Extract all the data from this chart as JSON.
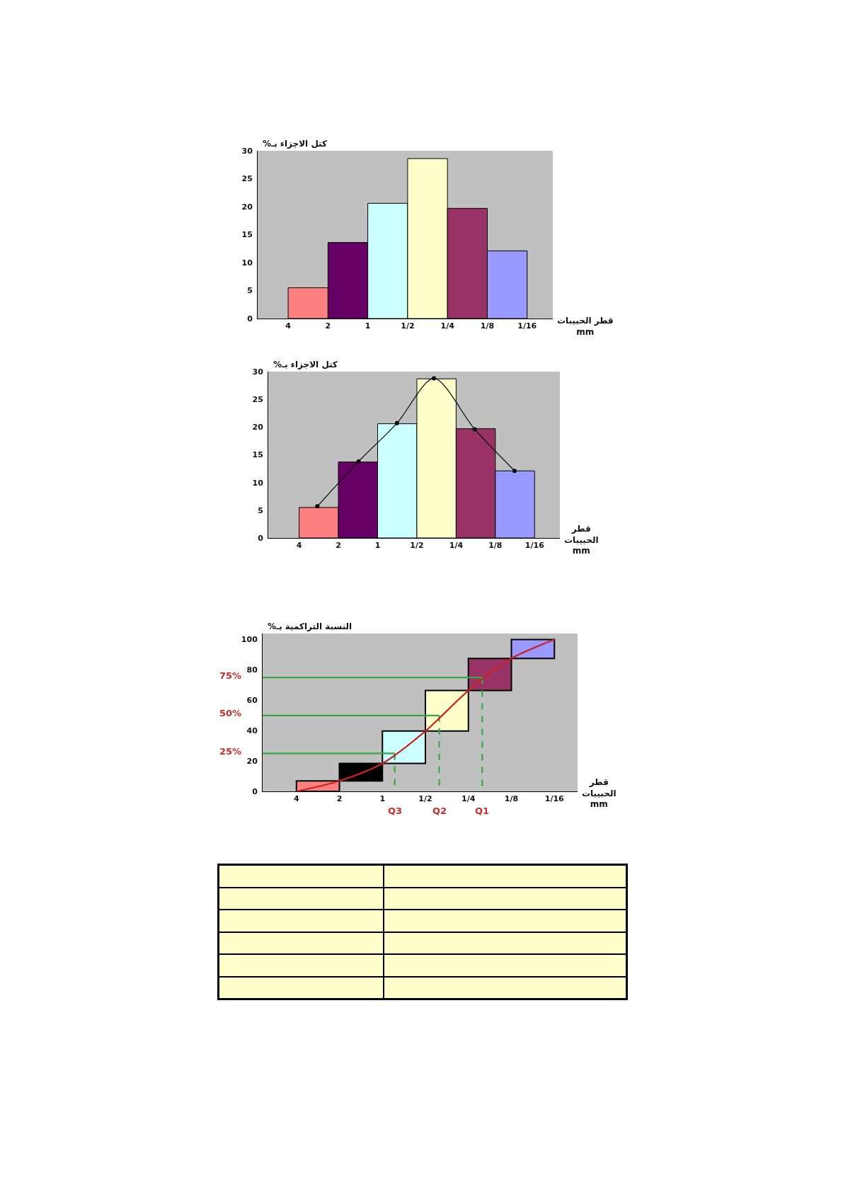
{
  "chart_data": [
    {
      "type": "histogram",
      "ylabel": "كتل الاجزاء بـ%",
      "xlabel": "قطر الحبيبات\nmm",
      "bins": [
        4,
        2,
        1,
        0.5,
        0.25,
        0.125,
        0.0625
      ],
      "values": [
        5.5,
        13.6,
        20.6,
        28.6,
        19.7,
        12.1
      ],
      "colors": [
        "#ff8080",
        "#660066",
        "#ccffff",
        "#ffffcc",
        "#993366",
        "#9999ff"
      ],
      "log": "x",
      "xlim": [
        6.8,
        0.04
      ],
      "xticks": [
        4,
        2,
        1,
        {
          "value": 0.5,
          "label": "1/2"
        },
        {
          "value": 0.25,
          "label": "1/4"
        },
        {
          "value": 0.125,
          "label": "1/8"
        },
        {
          "value": 0.0625,
          "label": "1/16"
        }
      ],
      "ylim": [
        0,
        30
      ],
      "yticks": [
        0,
        5,
        10,
        15,
        20,
        25,
        30
      ]
    },
    {
      "type": "histogram",
      "ylabel": "كتل الاجزاء بـ%",
      "xlabel": "قطر\nالحبيبات\nmm",
      "bins": [
        4,
        2,
        1,
        0.5,
        0.25,
        0.125,
        0.0625
      ],
      "values": [
        5.5,
        13.7,
        20.6,
        28.7,
        19.7,
        12.1
      ],
      "colors": [
        "#ff8080",
        "#660066",
        "#ccffff",
        "#ffffcc",
        "#993366",
        "#9999ff"
      ],
      "series": [
        {
          "type": "line",
          "color": "#000000",
          "x": [
            2.9,
            1.4,
            0.71,
            0.37,
            0.18,
            0.089
          ],
          "values": [
            5.7,
            13.8,
            20.7,
            28.8,
            19.6,
            12.1
          ],
          "marker": "circle"
        }
      ],
      "log": "x",
      "xlim": [
        6.9,
        0.04
      ],
      "xticks": [
        4,
        2,
        1,
        {
          "value": 0.5,
          "label": "1/2"
        },
        {
          "value": 0.25,
          "label": "1/4"
        },
        {
          "value": 0.125,
          "label": "1/8"
        },
        {
          "value": 0.0625,
          "label": "1/16"
        }
      ],
      "ylim": [
        0,
        30
      ],
      "yticks": [
        0,
        5,
        10,
        15,
        20,
        25,
        30
      ]
    },
    {
      "type": "histogram",
      "ylabel": "النسبة التراكمية بـ%",
      "xlabel": "قطر\nالحبيبات\nmm",
      "bins": [
        4,
        2,
        1,
        0.5,
        0.25,
        0.125,
        0.0625
      ],
      "base": [
        0,
        6.9,
        18.4,
        39.7,
        66.4,
        87.6
      ],
      "values": [
        6.9,
        11.5,
        21.3,
        26.7,
        21.2,
        12.4
      ],
      "colors": [
        "#ff8080",
        "#000000",
        "#ccffff",
        "#ffffcc",
        "#993366",
        "#9999ff"
      ],
      "series": [
        {
          "type": "line",
          "color": "#33aa44",
          "x": [
            6.9,
            0.82
          ],
          "values": [
            25,
            25
          ]
        },
        {
          "type": "line",
          "color": "#33aa44",
          "x": [
            0.82,
            0.82
          ],
          "values": [
            25,
            0
          ],
          "line_style": "dashed"
        },
        {
          "type": "line",
          "color": "#33aa44",
          "x": [
            6.9,
            0.4
          ],
          "values": [
            50,
            50
          ]
        },
        {
          "type": "line",
          "color": "#33aa44",
          "x": [
            0.4,
            0.4
          ],
          "values": [
            50,
            0
          ],
          "line_style": "dashed"
        },
        {
          "type": "line",
          "color": "#33aa44",
          "x": [
            6.9,
            0.2
          ],
          "values": [
            75,
            75
          ]
        },
        {
          "type": "line",
          "color": "#33aa44",
          "x": [
            0.2,
            0.2
          ],
          "values": [
            75,
            0
          ],
          "line_style": "dashed"
        },
        {
          "type": "line",
          "color": "#cc2222",
          "x": [
            4,
            2,
            1,
            0.5,
            0.25,
            0.125,
            0.0625
          ],
          "values": [
            0,
            6.9,
            18.4,
            39.7,
            66.4,
            87.6,
            100
          ]
        }
      ],
      "annotations": [
        {
          "text": "75%",
          "x": 6.9,
          "y": 75
        },
        {
          "text": "50%",
          "x": 6.9,
          "y": 50
        },
        {
          "text": "25%",
          "x": 6.9,
          "y": 25
        },
        {
          "text": "Q3",
          "x": 0.82,
          "y": 0
        },
        {
          "text": "Q2",
          "x": 0.4,
          "y": 0
        },
        {
          "text": "Q1",
          "x": 0.2,
          "y": 0
        }
      ],
      "log": "x",
      "xlim": [
        6.9,
        0.043
      ],
      "xticks": [
        4,
        2,
        1,
        {
          "value": 0.5,
          "label": "1/2"
        },
        {
          "value": 0.25,
          "label": "1/4"
        },
        {
          "value": 0.125,
          "label": "1/8"
        },
        {
          "value": 0.0625,
          "label": "1/16"
        }
      ],
      "ylim": [
        0,
        104
      ],
      "yticks": [
        0,
        20,
        40,
        60,
        80,
        100
      ]
    }
  ]
}
